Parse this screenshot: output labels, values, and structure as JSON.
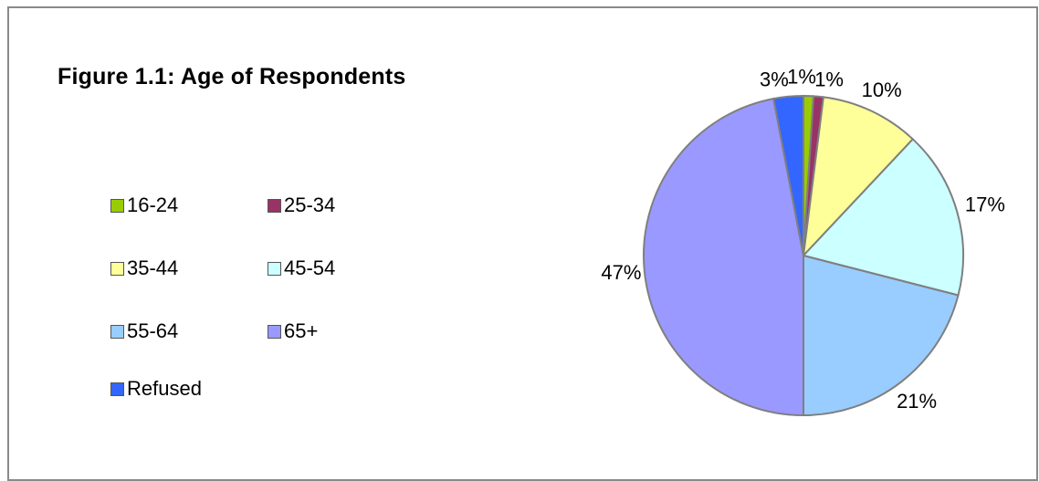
{
  "chart_data": {
    "type": "pie",
    "title": "Figure 1.1:  Age of Respondents",
    "categories": [
      "16-24",
      "25-34",
      "35-44",
      "45-54",
      "55-64",
      "65+",
      "Refused"
    ],
    "values": [
      1,
      1,
      10,
      17,
      21,
      47,
      3
    ],
    "slice_labels": [
      "1%",
      "1%",
      "10%",
      "17%",
      "21%",
      "47%",
      "3%"
    ],
    "colors": [
      "#99cc00",
      "#993366",
      "#ffff99",
      "#ccffff",
      "#99ccff",
      "#9999ff",
      "#3366ff"
    ],
    "legend_placement": "left"
  }
}
